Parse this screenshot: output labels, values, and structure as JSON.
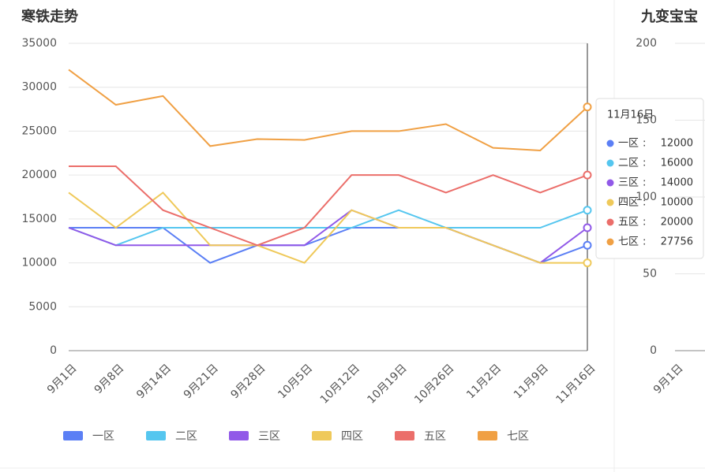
{
  "chart_data": [
    {
      "type": "line",
      "title": "寒铁走势",
      "categories": [
        "9月1日",
        "9月8日",
        "9月14日",
        "9月21日",
        "9月28日",
        "10月5日",
        "10月12日",
        "10月19日",
        "10月26日",
        "11月2日",
        "11月9日",
        "11月16日"
      ],
      "series": [
        {
          "name": "一区",
          "color": "#5b7ff5",
          "values": [
            14000,
            14000,
            14000,
            10000,
            12000,
            12000,
            14000,
            14000,
            14000,
            12000,
            10000,
            12000
          ]
        },
        {
          "name": "二区",
          "color": "#55c6ef",
          "values": [
            14000,
            12000,
            14000,
            14000,
            14000,
            14000,
            14000,
            16000,
            14000,
            14000,
            14000,
            16000
          ]
        },
        {
          "name": "三区",
          "color": "#9159e8",
          "values": [
            14000,
            12000,
            12000,
            12000,
            12000,
            12000,
            16000,
            14000,
            14000,
            12000,
            10000,
            14000
          ]
        },
        {
          "name": "四区",
          "color": "#efc95a",
          "values": [
            18000,
            14000,
            18000,
            12000,
            12000,
            10000,
            16000,
            14000,
            14000,
            12000,
            10000,
            10000
          ]
        },
        {
          "name": "五区",
          "color": "#eb6e6a",
          "values": [
            21000,
            21000,
            16000,
            14000,
            12000,
            14000,
            20000,
            20000,
            18000,
            20000,
            18000,
            20000
          ]
        },
        {
          "name": "七区",
          "color": "#f0a044",
          "values": [
            32000,
            28000,
            29000,
            23300,
            24100,
            24000,
            25000,
            25000,
            25800,
            23100,
            22800,
            27756
          ]
        }
      ],
      "ylim": [
        0,
        35000
      ],
      "yticks": [
        0,
        5000,
        10000,
        15000,
        20000,
        25000,
        30000,
        35000
      ],
      "grid": true
    },
    {
      "type": "line",
      "title": "九变宝宝",
      "categories": [
        "9月1日"
      ],
      "ylim": [
        0,
        200
      ],
      "yticks": [
        0,
        50,
        100,
        150,
        200
      ],
      "grid": true
    }
  ]
}
